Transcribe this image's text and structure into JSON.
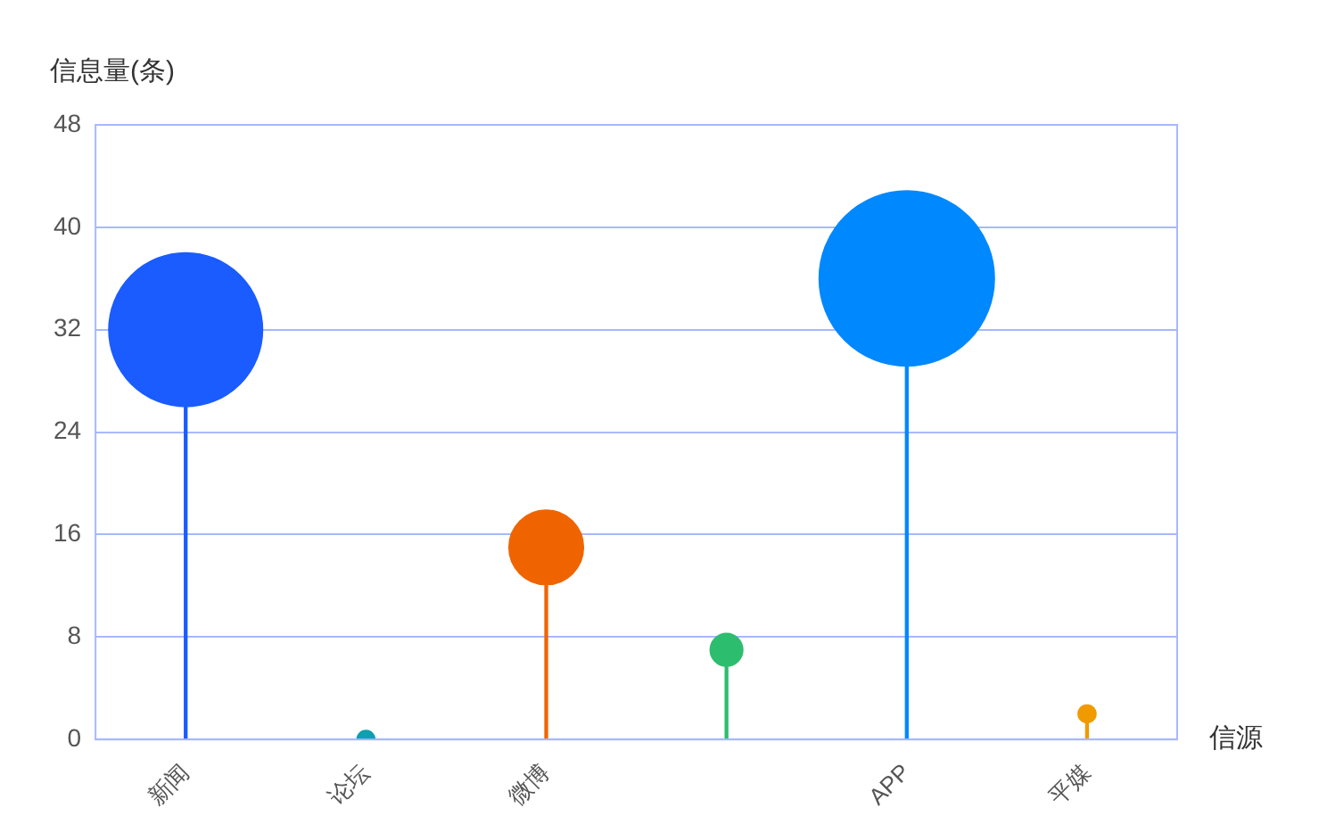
{
  "chart_data": {
    "type": "lollipop",
    "xlabel": "信源",
    "ylabel": "信息量(条)",
    "categories": [
      "新闻",
      "论坛",
      "微博",
      null,
      "APP",
      "平媒"
    ],
    "values": [
      32,
      0,
      15,
      7,
      36,
      2
    ],
    "sizes": [
      0.77,
      0.01,
      0.18,
      0.034,
      1,
      0.01
    ],
    "colors": [
      "#1a5cff",
      "#0e9fb0",
      "#f06400",
      "#2dbd6e",
      "#0088ff",
      "#f09a00"
    ],
    "ylim": [
      0,
      48
    ],
    "yticks": [
      0,
      8,
      16,
      24,
      32,
      40,
      48
    ],
    "grid": "y",
    "legend": false,
    "marker": "circle"
  }
}
